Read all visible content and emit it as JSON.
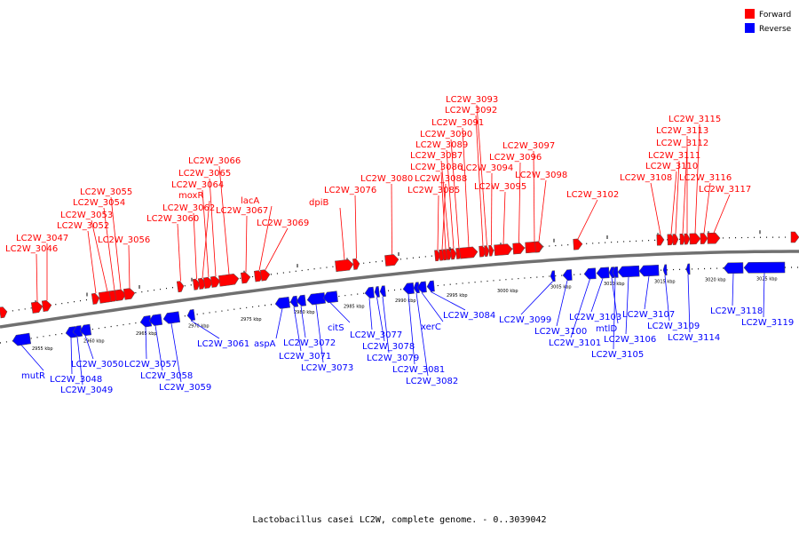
{
  "legend": {
    "forward_label": "Forward",
    "reverse_label": "Reverse",
    "forward_color": "#ff0000",
    "reverse_color": "#0000ff"
  },
  "caption": "Lactobacillus casei LC2W, complete genome. - 0..3039042",
  "scale_ticks": [
    "2955 kbp",
    "2960 kbp",
    "2965 kbp",
    "2970 kbp",
    "2975 kbp",
    "2980 kbp",
    "2985 kbp",
    "2990 kbp",
    "2995 kbp",
    "3000 kbp",
    "3005 kbp",
    "3010 kbp",
    "3015 kbp",
    "3020 kbp",
    "3025 kbp"
  ],
  "forward_genes": [
    {
      "label": "LC2W_3046"
    },
    {
      "label": "LC2W_3047"
    },
    {
      "label": "LC2W_3052"
    },
    {
      "label": "LC2W_3053"
    },
    {
      "label": "LC2W_3054"
    },
    {
      "label": "LC2W_3055"
    },
    {
      "label": "LC2W_3056"
    },
    {
      "label": "LC2W_3060"
    },
    {
      "label": "LC2W_3062"
    },
    {
      "label": "moxR"
    },
    {
      "label": "LC2W_3064"
    },
    {
      "label": "LC2W_3065"
    },
    {
      "label": "LC2W_3066"
    },
    {
      "label": "LC2W_3067"
    },
    {
      "label": "lacA"
    },
    {
      "label": "LC2W_3069"
    },
    {
      "label": "dpiB"
    },
    {
      "label": "LC2W_3076"
    },
    {
      "label": "LC2W_3080"
    },
    {
      "label": "LC2W_3085"
    },
    {
      "label": "LC2W_3088"
    },
    {
      "label": "LC2W_3086"
    },
    {
      "label": "LC2W_3087"
    },
    {
      "label": "LC2W_3089"
    },
    {
      "label": "LC2W_3090"
    },
    {
      "label": "LC2W_3091"
    },
    {
      "label": "LC2W_3092"
    },
    {
      "label": "LC2W_3093"
    },
    {
      "label": "LC2W_3094"
    },
    {
      "label": "LC2W_3095"
    },
    {
      "label": "LC2W_3096"
    },
    {
      "label": "LC2W_3097"
    },
    {
      "label": "LC2W_3098"
    },
    {
      "label": "LC2W_3102"
    },
    {
      "label": "LC2W_3108"
    },
    {
      "label": "LC2W_3110"
    },
    {
      "label": "LC2W_3111"
    },
    {
      "label": "LC2W_3112"
    },
    {
      "label": "LC2W_3113"
    },
    {
      "label": "LC2W_3115"
    },
    {
      "label": "LC2W_3116"
    },
    {
      "label": "LC2W_3117"
    }
  ],
  "reverse_genes": [
    {
      "label": "mutR"
    },
    {
      "label": "LC2W_3048"
    },
    {
      "label": "LC2W_3049"
    },
    {
      "label": "LC2W_3050"
    },
    {
      "label": "LC2W_3057"
    },
    {
      "label": "LC2W_3058"
    },
    {
      "label": "LC2W_3059"
    },
    {
      "label": "LC2W_3061"
    },
    {
      "label": "aspA"
    },
    {
      "label": "LC2W_3071"
    },
    {
      "label": "LC2W_3072"
    },
    {
      "label": "LC2W_3073"
    },
    {
      "label": "citS"
    },
    {
      "label": "LC2W_3077"
    },
    {
      "label": "LC2W_3078"
    },
    {
      "label": "LC2W_3079"
    },
    {
      "label": "LC2W_3081"
    },
    {
      "label": "LC2W_3082"
    },
    {
      "label": "xerC"
    },
    {
      "label": "LC2W_3084"
    },
    {
      "label": "LC2W_3099"
    },
    {
      "label": "LC2W_3100"
    },
    {
      "label": "LC2W_3101"
    },
    {
      "label": "LC2W_3103"
    },
    {
      "label": "mtlD"
    },
    {
      "label": "LC2W_3105"
    },
    {
      "label": "LC2W_3106"
    },
    {
      "label": "LC2W_3107"
    },
    {
      "label": "LC2W_3109"
    },
    {
      "label": "LC2W_3114"
    },
    {
      "label": "LC2W_3118"
    },
    {
      "label": "LC2W_3119"
    }
  ]
}
